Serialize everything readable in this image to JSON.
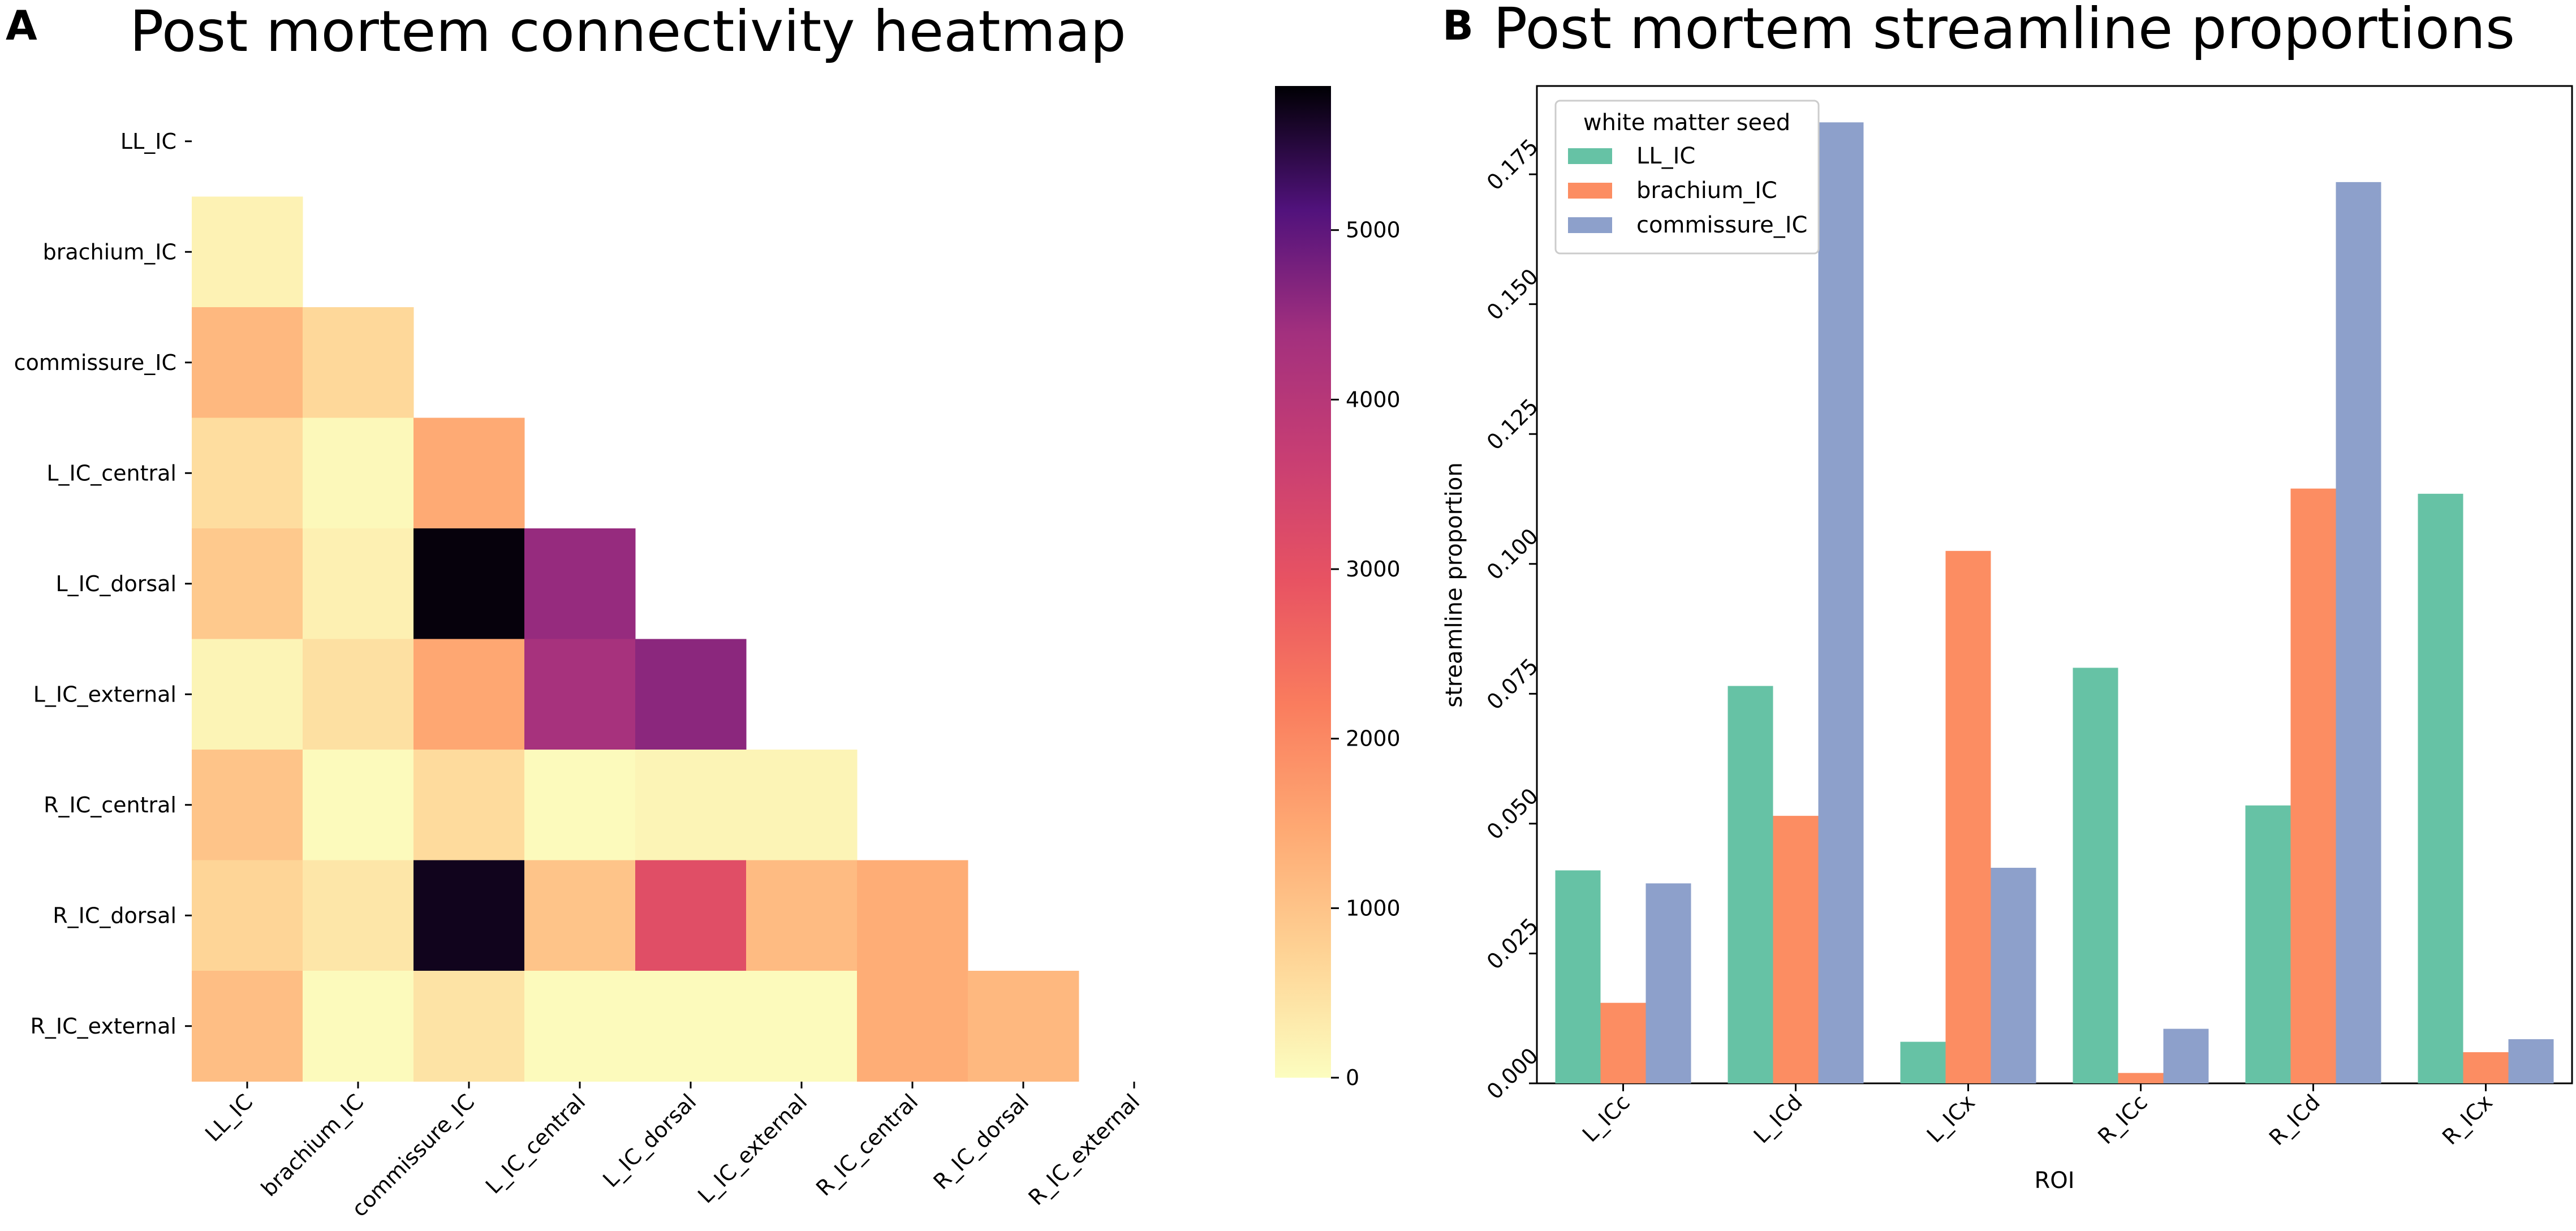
{
  "panel_a": {
    "letter": "A"
  },
  "panel_b": {
    "letter": "B"
  },
  "chart_data": [
    {
      "type": "heatmap",
      "title": "Post mortem connectivity heatmap",
      "row_labels": [
        "LL_IC",
        "brachium_IC",
        "commissure_IC",
        "L_IC_central",
        "L_IC_dorsal",
        "L_IC_external",
        "R_IC_central",
        "R_IC_dorsal",
        "R_IC_external"
      ],
      "col_labels": [
        "LL_IC",
        "brachium_IC",
        "commissure_IC",
        "L_IC_central",
        "L_IC_dorsal",
        "L_IC_external",
        "R_IC_central",
        "R_IC_dorsal",
        "R_IC_external"
      ],
      "mask": "lower-triangle",
      "values": [
        [],
        [
          200
        ],
        [
          1200,
          650
        ],
        [
          550,
          80,
          1450
        ],
        [
          900,
          220,
          5800,
          4500
        ],
        [
          150,
          500,
          1500,
          4300,
          4600
        ],
        [
          1000,
          50,
          600,
          50,
          150,
          150
        ],
        [
          700,
          400,
          5700,
          1000,
          3100,
          1150,
          1400
        ],
        [
          1100,
          50,
          450,
          50,
          50,
          50,
          1400,
          1200
        ]
      ],
      "colormap": "magma_r",
      "colorbar": {
        "min": 0,
        "max": 5850,
        "ticks": [
          0,
          1000,
          2000,
          3000,
          4000,
          5000
        ]
      }
    },
    {
      "type": "bar",
      "title": "Post mortem streamline proportions",
      "xlabel": "ROI",
      "ylabel": "streamline proportion",
      "categories": [
        "L_ICc",
        "L_ICd",
        "L_ICx",
        "R_ICc",
        "R_ICd",
        "R_ICx"
      ],
      "series": [
        {
          "name": "LL_IC",
          "color": "#66c2a5",
          "values": [
            0.041,
            0.0765,
            0.008,
            0.08,
            0.0535,
            0.1135
          ]
        },
        {
          "name": "brachium_IC",
          "color": "#fc8d62",
          "values": [
            0.0155,
            0.0515,
            0.1025,
            0.002,
            0.1145,
            0.006
          ]
        },
        {
          "name": "commissure_IC",
          "color": "#8da0cb",
          "values": [
            0.0385,
            0.185,
            0.0415,
            0.0105,
            0.1735,
            0.0085
          ]
        }
      ],
      "ylim": [
        0,
        0.192
      ],
      "yticks": [
        "0.000",
        "0.025",
        "0.050",
        "0.075",
        "0.100",
        "0.125",
        "0.150",
        "0.175"
      ],
      "legend": {
        "title": "white matter seed",
        "position": "top-left"
      }
    }
  ]
}
